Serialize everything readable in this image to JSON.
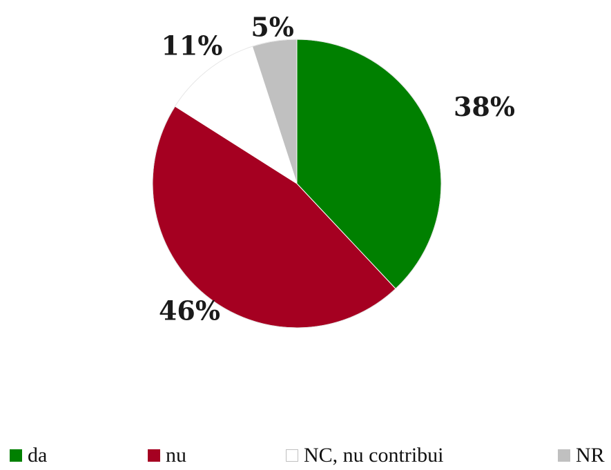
{
  "chart_data": {
    "type": "pie",
    "title": "",
    "categories": [
      "da",
      "nu",
      "NC, nu contribui",
      "NR"
    ],
    "values": [
      38,
      46,
      11,
      5
    ],
    "labels": [
      "38%",
      "46%",
      "11%",
      "5%"
    ],
    "colors": [
      "#008000",
      "#A50021",
      "#FFFFFF",
      "#C0C0C0"
    ],
    "legend_position": "bottom",
    "start": "top, clockwise"
  }
}
